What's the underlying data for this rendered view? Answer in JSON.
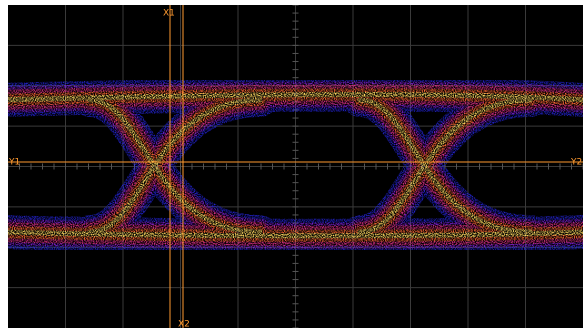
{
  "cursors": {
    "x1": "X1",
    "x2": "X2",
    "y1": "Y1",
    "y2": "Y2"
  }
}
